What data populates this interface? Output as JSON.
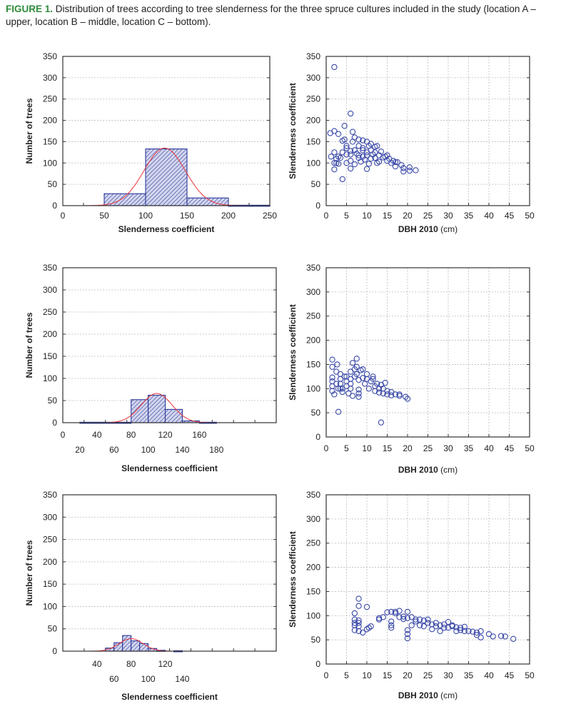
{
  "caption": {
    "label": "FIGURE 1.",
    "text": " Distribution of trees according to tree slenderness for the three spruce cultures included in the study (location A – upper, location B – middle, location C – bottom)."
  },
  "colors": {
    "bar": "#2b3a9a",
    "hatch_bg": "#d3d6ee",
    "curve": "#e8343a",
    "point": "#3a49a8",
    "grid": "#bbbbbb",
    "caption_label": "#2e8b3a"
  },
  "chart_data": [
    {
      "id": "hist-a",
      "type": "bar",
      "title": "",
      "xlabel": "Slenderness coefficient",
      "ylabel": "Number of trees",
      "xlim": [
        0,
        250
      ],
      "ylim": [
        0,
        350
      ],
      "yticks": [
        "0",
        "50",
        "100",
        "150",
        "200",
        "250",
        "300",
        "350"
      ],
      "xticks_row1": [
        "0",
        "50",
        "100",
        "150",
        "200",
        "250"
      ],
      "xticks_row1_values": [
        0,
        50,
        100,
        150,
        200,
        250
      ],
      "xticks_row2": [],
      "xticks_row2_values": [],
      "bins": [
        [
          50,
          100
        ],
        [
          100,
          150
        ],
        [
          150,
          200
        ],
        [
          200,
          250
        ]
      ],
      "values": [
        28,
        133,
        18,
        1
      ],
      "normal_fit": {
        "mean": 123,
        "sd": 25,
        "peak": 135
      }
    },
    {
      "id": "scatter-a",
      "type": "scatter",
      "title": "",
      "xlabel": "DBH 2010",
      "xlabel_unit": " (cm)",
      "ylabel": "Slenderness coefficient",
      "xlim": [
        0,
        50
      ],
      "ylim": [
        0,
        350
      ],
      "yticks": [
        "0",
        "50",
        "100",
        "150",
        "200",
        "250",
        "300",
        "350"
      ],
      "xticks": [
        "0",
        "5",
        "10",
        "15",
        "20",
        "25",
        "30",
        "35",
        "40",
        "45",
        "50"
      ],
      "points": [
        [
          2,
          325
        ],
        [
          6,
          216
        ],
        [
          4.5,
          187
        ],
        [
          1,
          170
        ],
        [
          2,
          175
        ],
        [
          3,
          168
        ],
        [
          6.5,
          173
        ],
        [
          4,
          152
        ],
        [
          4.5,
          155
        ],
        [
          5,
          140
        ],
        [
          5,
          135
        ],
        [
          7,
          160
        ],
        [
          6.5,
          150
        ],
        [
          8,
          155
        ],
        [
          9,
          153
        ],
        [
          10,
          150
        ],
        [
          11,
          145
        ],
        [
          10.5,
          140
        ],
        [
          8,
          140
        ],
        [
          9,
          135
        ],
        [
          7,
          130
        ],
        [
          6,
          128
        ],
        [
          12,
          138
        ],
        [
          12.5,
          140
        ],
        [
          13.5,
          127
        ],
        [
          11,
          130
        ],
        [
          12,
          125
        ],
        [
          10,
          125
        ],
        [
          9,
          130
        ],
        [
          7.5,
          122
        ],
        [
          6,
          120
        ],
        [
          4,
          125
        ],
        [
          2,
          125
        ],
        [
          1.2,
          115
        ],
        [
          2.5,
          110
        ],
        [
          3,
          115
        ],
        [
          3.5,
          112
        ],
        [
          5,
          120
        ],
        [
          2,
          100
        ],
        [
          2.5,
          100
        ],
        [
          3,
          98
        ],
        [
          5,
          100
        ],
        [
          6,
          105
        ],
        [
          7,
          97
        ],
        [
          6,
          87
        ],
        [
          2,
          85
        ],
        [
          4,
          62
        ],
        [
          8.5,
          103
        ],
        [
          9.5,
          108
        ],
        [
          10,
          86
        ],
        [
          10.5,
          98
        ],
        [
          11,
          110
        ],
        [
          12,
          112
        ],
        [
          12.5,
          100
        ],
        [
          13,
          103
        ],
        [
          14,
          113
        ],
        [
          14.5,
          115
        ],
        [
          15,
          105
        ],
        [
          15.5,
          110
        ],
        [
          16,
          100
        ],
        [
          16.5,
          105
        ],
        [
          17,
          102
        ],
        [
          17,
          92
        ],
        [
          17.5,
          102
        ],
        [
          18.5,
          95
        ],
        [
          19,
          88
        ],
        [
          19,
          80
        ],
        [
          20.5,
          90
        ],
        [
          20.5,
          82
        ],
        [
          22,
          83
        ],
        [
          13,
          118
        ],
        [
          15,
          118
        ],
        [
          11.5,
          120
        ],
        [
          9,
          115
        ],
        [
          8,
          118
        ],
        [
          8,
          112
        ],
        [
          10,
          118
        ]
      ]
    },
    {
      "id": "hist-b",
      "type": "bar",
      "title": "",
      "xlabel": "Slenderness coefficient",
      "ylabel": "Number of trees",
      "xlim": [
        0,
        250
      ],
      "ylim": [
        0,
        350
      ],
      "yticks": [
        "0",
        "50",
        "100",
        "150",
        "200",
        "250",
        "300",
        "350"
      ],
      "xticks_row1": [
        "0",
        "40",
        "80",
        "120",
        "160"
      ],
      "xticks_row1_values": [
        0,
        40,
        80,
        120,
        160
      ],
      "xticks_row2": [
        "20",
        "60",
        "100",
        "140",
        "180"
      ],
      "xticks_row2_values": [
        20,
        60,
        100,
        140,
        180
      ],
      "bins": [
        [
          20,
          80
        ],
        [
          80,
          100
        ],
        [
          100,
          120
        ],
        [
          120,
          140
        ],
        [
          140,
          160
        ],
        [
          160,
          180
        ]
      ],
      "values": [
        1,
        52,
        62,
        30,
        4,
        1
      ],
      "normal_fit": {
        "mean": 110,
        "sd": 18,
        "peak": 66
      }
    },
    {
      "id": "scatter-b",
      "type": "scatter",
      "title": "",
      "xlabel": "DBH 2010",
      "xlabel_unit": " (cm)",
      "ylabel": "Slenderness coefficient",
      "xlim": [
        0,
        50
      ],
      "ylim": [
        0,
        350
      ],
      "yticks": [
        "0",
        "50",
        "100",
        "150",
        "200",
        "250",
        "300",
        "350"
      ],
      "xticks": [
        "0",
        "5",
        "10",
        "15",
        "20",
        "25",
        "30",
        "35",
        "40",
        "45",
        "50"
      ],
      "points": [
        [
          1.5,
          160
        ],
        [
          1.5,
          145
        ],
        [
          2.7,
          150
        ],
        [
          1.5,
          123
        ],
        [
          1.5,
          115
        ],
        [
          1.5,
          105
        ],
        [
          1.5,
          95
        ],
        [
          2,
          88
        ],
        [
          2.5,
          135
        ],
        [
          2.5,
          110
        ],
        [
          3,
          100
        ],
        [
          3.5,
          130
        ],
        [
          3.5,
          120
        ],
        [
          3.5,
          110
        ],
        [
          3.5,
          100
        ],
        [
          4,
          93
        ],
        [
          4.5,
          125
        ],
        [
          5,
          115
        ],
        [
          5,
          105
        ],
        [
          5.5,
          90
        ],
        [
          6,
          135
        ],
        [
          6,
          120
        ],
        [
          6,
          110
        ],
        [
          6,
          100
        ],
        [
          6.5,
          85
        ],
        [
          6.5,
          153
        ],
        [
          7,
          140
        ],
        [
          7,
          125
        ],
        [
          7.5,
          162
        ],
        [
          7.5,
          145
        ],
        [
          7.5,
          130
        ],
        [
          8,
          118
        ],
        [
          8,
          98
        ],
        [
          8,
          90
        ],
        [
          8,
          83
        ],
        [
          8.5,
          138
        ],
        [
          9,
          140
        ],
        [
          9,
          122
        ],
        [
          9.5,
          110
        ],
        [
          10,
          120
        ],
        [
          10,
          130
        ],
        [
          10.5,
          100
        ],
        [
          11,
          115
        ],
        [
          11.5,
          120
        ],
        [
          11.5,
          125
        ],
        [
          12,
          95
        ],
        [
          12,
          105
        ],
        [
          12.5,
          110
        ],
        [
          13,
          100
        ],
        [
          13,
          92
        ],
        [
          13.5,
          108
        ],
        [
          14,
          100
        ],
        [
          14,
          90
        ],
        [
          14.5,
          112
        ],
        [
          15,
          95
        ],
        [
          15,
          88
        ],
        [
          16,
          93
        ],
        [
          16,
          86
        ],
        [
          17,
          88
        ],
        [
          18,
          88
        ],
        [
          18,
          85
        ],
        [
          19.5,
          83
        ],
        [
          20,
          79
        ],
        [
          3,
          52
        ],
        [
          13.5,
          30
        ],
        [
          4,
          100
        ],
        [
          5,
          125
        ]
      ]
    },
    {
      "id": "hist-c",
      "type": "bar",
      "title": "",
      "xlabel": "Slenderness coefficient",
      "ylabel": "Number of trees",
      "xlim": [
        0,
        250
      ],
      "ylim": [
        0,
        350
      ],
      "yticks": [
        "0",
        "50",
        "100",
        "150",
        "200",
        "250",
        "300",
        "350"
      ],
      "xticks_row1": [
        "40",
        "80",
        "120"
      ],
      "xticks_row1_values": [
        40,
        80,
        120
      ],
      "xticks_row2": [
        "60",
        "100",
        "140"
      ],
      "xticks_row2_values": [
        60,
        100,
        140
      ],
      "bins": [
        [
          50,
          60
        ],
        [
          60,
          70
        ],
        [
          70,
          80
        ],
        [
          80,
          90
        ],
        [
          90,
          100
        ],
        [
          100,
          110
        ],
        [
          110,
          120
        ],
        [
          130,
          140
        ]
      ],
      "values": [
        7,
        19,
        35,
        23,
        17,
        6,
        2,
        1
      ],
      "normal_fit": {
        "mean": 80,
        "sd": 14,
        "peak": 28
      }
    },
    {
      "id": "scatter-c",
      "type": "scatter",
      "title": "",
      "xlabel": "DBH 2010",
      "xlabel_unit": " (cm)",
      "ylabel": "Slenderness coefficient",
      "xlim": [
        0,
        50
      ],
      "ylim": [
        0,
        350
      ],
      "yticks": [
        "0",
        "50",
        "100",
        "150",
        "200",
        "250",
        "300",
        "350"
      ],
      "xticks": [
        "0",
        "5",
        "10",
        "15",
        "20",
        "25",
        "30",
        "35",
        "40",
        "45",
        "50"
      ],
      "points": [
        [
          7,
          105
        ],
        [
          7,
          92
        ],
        [
          7,
          85
        ],
        [
          7,
          80
        ],
        [
          7,
          70
        ],
        [
          8,
          135
        ],
        [
          8,
          120
        ],
        [
          8,
          90
        ],
        [
          8,
          85
        ],
        [
          8,
          78
        ],
        [
          8,
          68
        ],
        [
          9,
          65
        ],
        [
          10,
          118
        ],
        [
          10,
          72
        ],
        [
          10.5,
          75
        ],
        [
          11,
          78
        ],
        [
          13,
          95
        ],
        [
          13,
          92
        ],
        [
          14,
          97
        ],
        [
          15,
          107
        ],
        [
          16,
          108
        ],
        [
          16,
          88
        ],
        [
          16,
          80
        ],
        [
          16,
          75
        ],
        [
          17,
          108
        ],
        [
          17,
          105
        ],
        [
          18,
          110
        ],
        [
          18,
          97
        ],
        [
          19,
          98
        ],
        [
          19,
          93
        ],
        [
          20,
          108
        ],
        [
          20,
          95
        ],
        [
          20,
          70
        ],
        [
          20,
          62
        ],
        [
          20,
          53
        ],
        [
          21,
          97
        ],
        [
          21,
          80
        ],
        [
          22,
          92
        ],
        [
          22,
          88
        ],
        [
          23,
          92
        ],
        [
          23,
          80
        ],
        [
          24,
          90
        ],
        [
          24,
          78
        ],
        [
          25,
          92
        ],
        [
          25,
          85
        ],
        [
          26,
          82
        ],
        [
          26,
          72
        ],
        [
          27,
          85
        ],
        [
          27,
          78
        ],
        [
          28,
          80
        ],
        [
          28,
          68
        ],
        [
          29,
          82
        ],
        [
          29,
          75
        ],
        [
          30,
          87
        ],
        [
          30,
          75
        ],
        [
          31,
          80
        ],
        [
          31,
          78
        ],
        [
          32,
          76
        ],
        [
          32,
          68
        ],
        [
          33,
          75
        ],
        [
          33,
          70
        ],
        [
          34,
          77
        ],
        [
          34,
          68
        ],
        [
          35,
          68
        ],
        [
          36,
          67
        ],
        [
          37,
          65
        ],
        [
          37,
          60
        ],
        [
          38,
          68
        ],
        [
          38,
          55
        ],
        [
          40,
          62
        ],
        [
          41,
          57
        ],
        [
          43,
          58
        ],
        [
          44,
          57
        ],
        [
          46,
          52
        ]
      ]
    }
  ]
}
